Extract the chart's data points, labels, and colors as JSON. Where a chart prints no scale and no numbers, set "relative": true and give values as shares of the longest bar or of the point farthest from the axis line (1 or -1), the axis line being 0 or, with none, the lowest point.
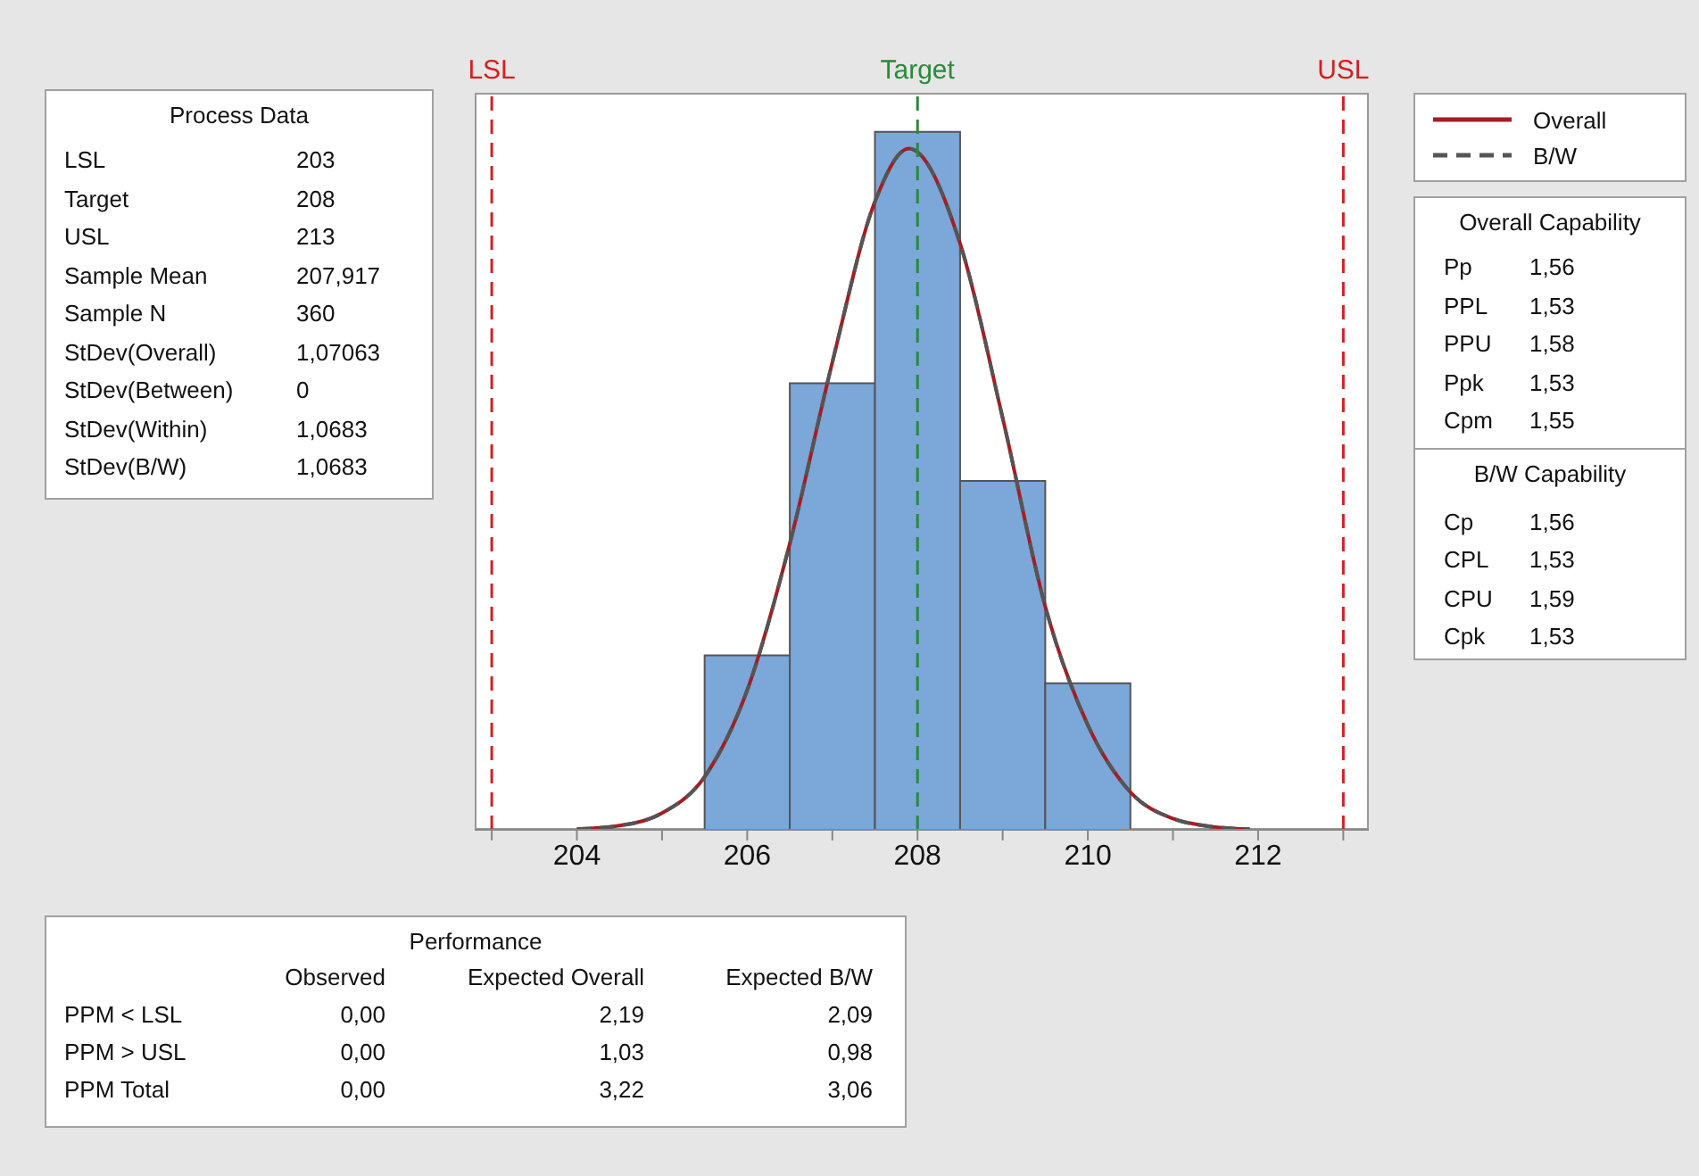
{
  "chart_data": {
    "type": "histogram",
    "relative": true,
    "bins": [
      205.5,
      206.5,
      207.5,
      208.5,
      209.5,
      210.5
    ],
    "values": [
      0.25,
      0.64,
      1,
      0.5,
      0.21
    ],
    "color": "#7ba7d9",
    "series": [
      {
        "name": "Overall",
        "type": "line",
        "line_style": "solid",
        "color": "#a31e22",
        "x": [
          204,
          204.5,
          205,
          205.5,
          206,
          206.5,
          207,
          207.5,
          207.9,
          208.5,
          209,
          209.5,
          210,
          210.5,
          211,
          211.5,
          211.9
        ],
        "values": [
          0.001,
          0.006,
          0.024,
          0.076,
          0.2,
          0.41,
          0.67,
          0.9,
          0.976,
          0.84,
          0.59,
          0.32,
          0.15,
          0.054,
          0.016,
          0.004,
          0.001
        ]
      },
      {
        "name": "B/W",
        "type": "line",
        "line_style": "dashed",
        "color": "#555555",
        "x": [
          204,
          204.5,
          205,
          205.5,
          206,
          206.5,
          207,
          207.5,
          207.9,
          208.5,
          209,
          209.5,
          210,
          210.5,
          211,
          211.5,
          211.9
        ],
        "values": [
          0.001,
          0.006,
          0.024,
          0.076,
          0.2,
          0.41,
          0.67,
          0.9,
          0.976,
          0.84,
          0.59,
          0.32,
          0.15,
          0.054,
          0.016,
          0.004,
          0.001
        ]
      }
    ],
    "xlim": [
      202.8,
      213.3
    ],
    "xticks": [
      {
        "value": 203,
        "label": null
      },
      204,
      {
        "value": 205,
        "label": null
      },
      206,
      {
        "value": 207,
        "label": null
      },
      208,
      {
        "value": 209,
        "label": null
      },
      210,
      {
        "value": 211,
        "label": null
      },
      212,
      {
        "value": 213,
        "label": null
      }
    ],
    "ref_lines": [
      {
        "axis": "x",
        "value": 203,
        "label": "LSL",
        "color": "#d42020",
        "line_style": "dashed"
      },
      {
        "axis": "x",
        "value": 208,
        "label": "Target",
        "color": "#2a8a3a",
        "line_style": "dashed"
      },
      {
        "axis": "x",
        "value": 213,
        "label": "USL",
        "color": "#d42020",
        "line_style": "dashed"
      }
    ],
    "legend": "top right",
    "grid": false,
    "annotations": [
      "Process Data",
      "LSL",
      "203",
      "Target",
      "208",
      "USL",
      "213",
      "Sample Mean",
      "207,917",
      "Sample N",
      "360",
      "StDev(Overall)",
      "1,07063",
      "StDev(Between)",
      "0",
      "StDev(Within)",
      "1,0683",
      "StDev(B/W)",
      "1,0683",
      "Overall Capability",
      "Pp",
      "1,56",
      "PPL",
      "1,53",
      "PPU",
      "1,58",
      "Ppk",
      "1,53",
      "Cpm",
      "1,55",
      "B/W Capability",
      "Cp",
      "1,56",
      "CPL",
      "1,53",
      "CPU",
      "1,59",
      "Cpk",
      "1,53",
      "Performance",
      "Observed",
      "Expected Overall",
      "Expected B/W",
      "PPM < LSL",
      "0,00",
      "2,19",
      "2,09",
      "PPM > USL",
      "0,00",
      "1,03",
      "0,98",
      "PPM Total",
      "0,00",
      "3,22",
      "3,06"
    ]
  }
}
